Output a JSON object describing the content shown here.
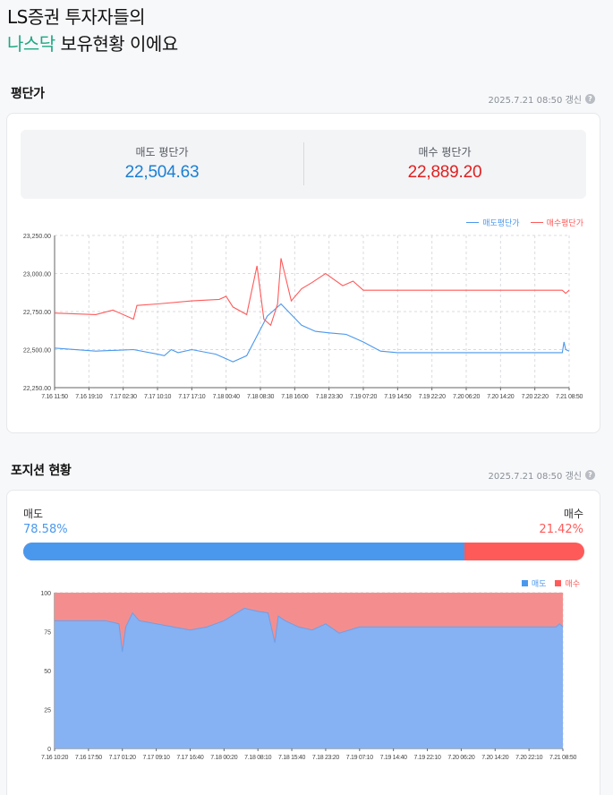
{
  "header": {
    "title_line1": "LS증권 투자자들의",
    "title_hl": "나스닥",
    "title_rest": " 보유현황 이에요"
  },
  "avg": {
    "section_title": "평단가",
    "updated": "2025.7.21 08:50 갱신",
    "sell_label": "매도 평단가",
    "sell_value": "22,504.63",
    "buy_label": "매수 평단가",
    "buy_value": "22,889.20",
    "legend_sell": "매도평단가",
    "legend_buy": "매수평단가"
  },
  "position": {
    "section_title": "포지션 현황",
    "updated": "2025.7.21 08:50 갱신",
    "sell_label": "매도",
    "sell_pct": "78.58%",
    "buy_label": "매수",
    "buy_pct": "21.42%",
    "sell_ratio": 0.7858,
    "legend_sell": "매도",
    "legend_buy": "매수"
  },
  "colors": {
    "sell": "#4a98ee",
    "buy": "#ff5a5a",
    "accent": "#1fa882"
  },
  "chart_data": [
    {
      "type": "line",
      "ylim": [
        22250,
        23250
      ],
      "y_ticks": [
        "22,250.00",
        "22,500.00",
        "22,750.00",
        "23,000.00",
        "23,250.00"
      ],
      "x_ticks": [
        "7.16 11:50",
        "7.16 19:10",
        "7.17 02:30",
        "7.17 10:10",
        "7.17 17:10",
        "7.18 00:40",
        "7.18 08:30",
        "7.18 16:00",
        "7.18 23:30",
        "7.19 07:20",
        "7.19 14:50",
        "7.19 22:20",
        "7.20 06:20",
        "7.20 14:20",
        "7.20 22:20",
        "7.21 08:50"
      ],
      "series": [
        {
          "name": "매도평단가",
          "x": [
            0,
            1.2,
            2.3,
            3.0,
            3.2,
            3.4,
            3.6,
            4.0,
            4.7,
            5.2,
            5.6,
            6.2,
            6.6,
            7.2,
            7.6,
            8.0,
            8.5,
            8.7,
            9.0,
            9.5,
            10,
            11,
            12,
            13,
            14,
            14.8,
            14.85,
            14.9,
            15
          ],
          "values": [
            22510,
            22490,
            22500,
            22470,
            22460,
            22500,
            22480,
            22500,
            22470,
            22420,
            22460,
            22720,
            22800,
            22660,
            22620,
            22610,
            22600,
            22580,
            22550,
            22490,
            22480,
            22480,
            22480,
            22480,
            22480,
            22480,
            22550,
            22500,
            22490
          ]
        },
        {
          "name": "매수평단가",
          "x": [
            0,
            1.2,
            1.7,
            2.3,
            2.4,
            3.0,
            4.0,
            4.8,
            5.0,
            5.2,
            5.6,
            5.9,
            6.1,
            6.3,
            6.5,
            6.6,
            6.9,
            7.2,
            7.5,
            7.9,
            8.4,
            8.7,
            9.0,
            9.5,
            10,
            11,
            12,
            13,
            14,
            14.8,
            14.9,
            15
          ],
          "values": [
            22740,
            22730,
            22760,
            22700,
            22790,
            22800,
            22820,
            22830,
            22850,
            22780,
            22730,
            23050,
            22700,
            22660,
            22800,
            23100,
            22820,
            22900,
            22940,
            23000,
            22920,
            22950,
            22890,
            22890,
            22890,
            22890,
            22890,
            22890,
            22890,
            22890,
            22870,
            22890
          ]
        }
      ]
    },
    {
      "type": "area",
      "ylim": [
        0,
        100
      ],
      "y_ticks": [
        "0",
        "25",
        "50",
        "75",
        "100"
      ],
      "x_ticks": [
        "7.16 10:20",
        "7.16 17:50",
        "7.17 01:20",
        "7.17 09:10",
        "7.17 16:40",
        "7.18 00:20",
        "7.18 08:10",
        "7.18 15:40",
        "7.18 23:20",
        "7.19 07:10",
        "7.19 14:40",
        "7.19 22:10",
        "7.20 06:20",
        "7.20 14:20",
        "7.20 22:10",
        "7.21 08:50"
      ],
      "series": [
        {
          "name": "매도",
          "x": [
            0,
            1.5,
            1.9,
            2.0,
            2.1,
            2.3,
            2.5,
            3.0,
            3.5,
            4.0,
            4.5,
            5.0,
            5.3,
            5.6,
            6.0,
            6.3,
            6.5,
            6.6,
            6.8,
            7.2,
            7.6,
            8.0,
            8.4,
            8.7,
            9.0,
            9.5,
            10,
            11,
            12,
            13,
            14,
            14.8,
            14.9,
            15
          ],
          "values": [
            82,
            82,
            80,
            62,
            78,
            87,
            82,
            80,
            78,
            76,
            78,
            82,
            86,
            90,
            88,
            87,
            68,
            85,
            82,
            78,
            76,
            80,
            74,
            76,
            78,
            78,
            78,
            78,
            78,
            78,
            78,
            78,
            80,
            78
          ]
        },
        {
          "name": "매수",
          "x": [
            0,
            15
          ],
          "values": [
            100,
            100
          ]
        }
      ]
    }
  ]
}
